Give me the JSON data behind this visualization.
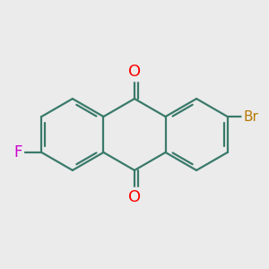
{
  "bg_color": "#ebebeb",
  "bond_color": "#3a7a6a",
  "bond_width": 1.6,
  "atom_colors": {
    "O": "#ff0000",
    "Br": "#b87800",
    "F": "#cc00cc"
  },
  "font_size_O": 13,
  "font_size_Br": 11,
  "font_size_F": 12
}
